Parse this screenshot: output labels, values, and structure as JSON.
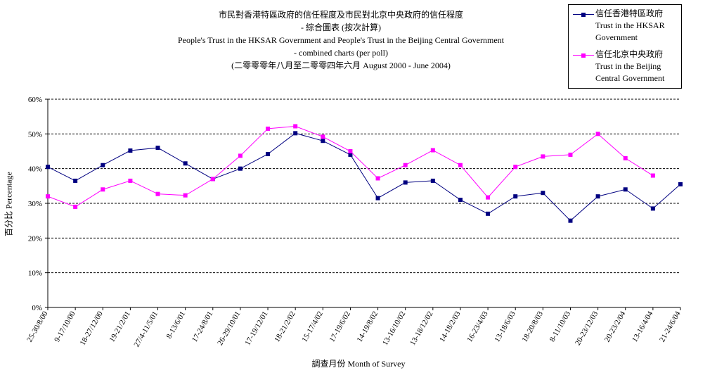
{
  "title_lines": [
    "市民對香港特區政府的信任程度及市民對北京中央政府的信任程度",
    "- 綜合圖表 (按次計算)",
    "People's Trust in the HKSAR Government and People's Trust in the Beijing Central Government",
    "- combined charts (per poll)",
    "(二零零零年八月至二零零四年六月 August 2000 - June 2004)"
  ],
  "legend": [
    {
      "lines": [
        "信任香港特區政府",
        "Trust in the HKSAR",
        "Government"
      ],
      "color": "#000080",
      "marker": "square"
    },
    {
      "lines": [
        "信任北京中央政府",
        "Trust in the Beijing",
        "Central Government"
      ],
      "color": "#FF00FF",
      "marker": "square"
    }
  ],
  "chart_data": {
    "type": "line",
    "title": "市民對香港特區政府的信任程度及市民對北京中央政府的信任程度 - 綜合圖表 (按次計算) People's Trust in the HKSAR Government and People's Trust in the Beijing Central Government - combined charts (per poll) (二零零零年八月至二零零四年六月 August 2000 - June 2004)",
    "xlabel": "調查月份 Month of Survey",
    "ylabel": "百分比 Percentage",
    "ylim": [
      0,
      60
    ],
    "yticks": [
      "0%",
      "10%",
      "20%",
      "30%",
      "40%",
      "50%",
      "60%"
    ],
    "grid": "horizontal dashed",
    "legend_position": "top-right",
    "categories": [
      "25-30/8/00",
      "9-17/10/00",
      "18-27/12/00",
      "19-21/2/01",
      "27/4-11/5/01",
      "8-13/6/01",
      "17-24/8/01",
      "26-29/10/01",
      "17-19/12/01",
      "18-21/2/02",
      "15-17/4/02",
      "17-19/6/02",
      "14-19/8/02",
      "13-16/10/02",
      "13-18/12/02",
      "14-18/2/03",
      "16-23/4/03",
      "13-18/6/03",
      "18-20/8/03",
      "8-11/10/03",
      "20-23/12/03",
      "20-23/2/04",
      "13-16/4/04",
      "21-24/6/04"
    ],
    "series": [
      {
        "name": "信任香港特區政府 Trust in the HKSAR Government",
        "color": "#000080",
        "values": [
          40.5,
          36.5,
          41.0,
          45.2,
          46.0,
          41.5,
          37.0,
          40.0,
          44.2,
          50.2,
          48.0,
          44.0,
          31.5,
          36.0,
          36.5,
          31.0,
          27.0,
          32.0,
          33.0,
          25.0,
          32.0,
          34.0,
          28.5,
          35.5
        ]
      },
      {
        "name": "信任北京中央政府 Trust in the Beijing Central Government",
        "color": "#FF00FF",
        "values": [
          32.0,
          29.0,
          34.0,
          36.5,
          32.7,
          32.3,
          37.0,
          43.7,
          51.5,
          52.2,
          49.2,
          45.0,
          37.2,
          41.0,
          45.3,
          41.0,
          31.7,
          40.5,
          43.5,
          44.0,
          50.0,
          43.0,
          38.0,
          null
        ]
      }
    ]
  }
}
